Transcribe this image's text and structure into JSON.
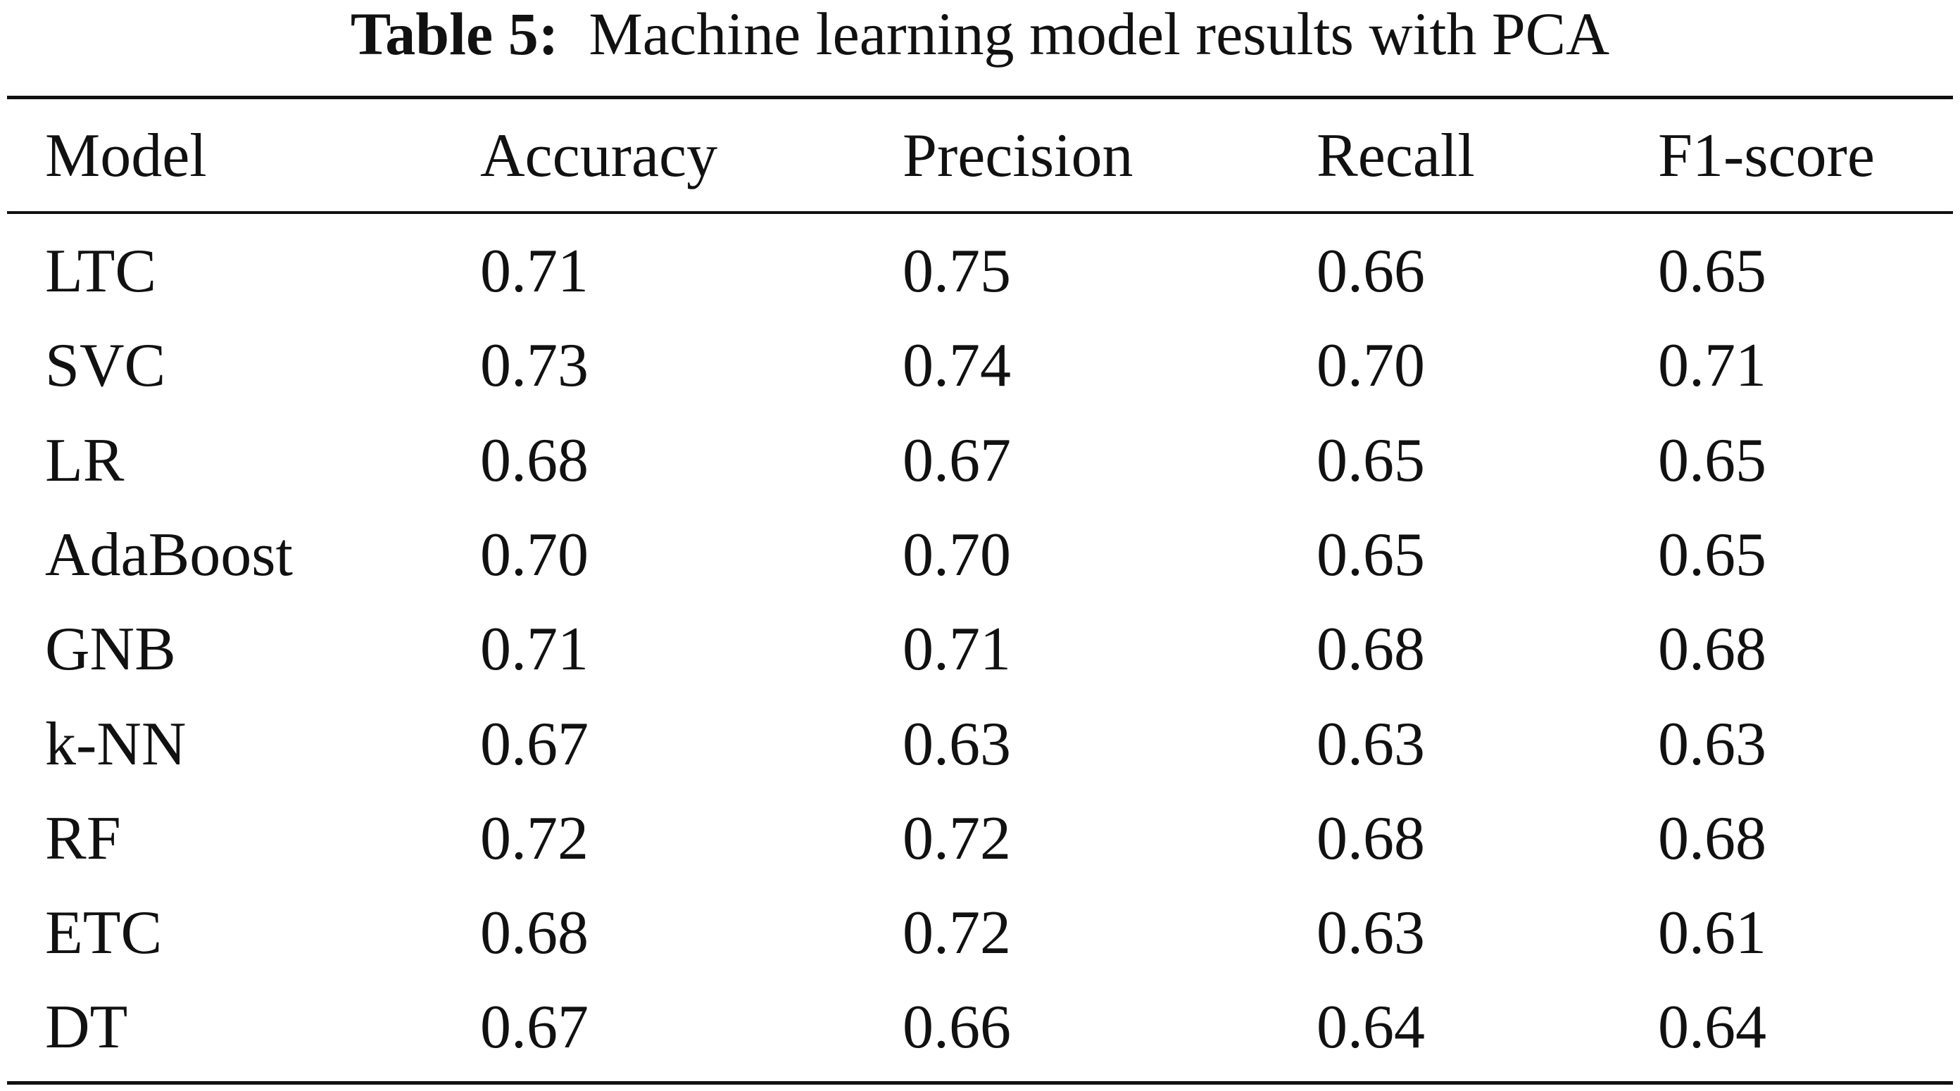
{
  "caption": {
    "label": "Table 5:",
    "text": "Machine learning model results with PCA"
  },
  "table": {
    "columns": [
      "Model",
      "Accuracy",
      "Precision",
      "Recall",
      "F1-score"
    ],
    "rows": [
      [
        "LTC",
        "0.71",
        "0.75",
        "0.66",
        "0.65"
      ],
      [
        "SVC",
        "0.73",
        "0.74",
        "0.70",
        "0.71"
      ],
      [
        "LR",
        "0.68",
        "0.67",
        "0.65",
        "0.65"
      ],
      [
        "AdaBoost",
        "0.70",
        "0.70",
        "0.65",
        "0.65"
      ],
      [
        "GNB",
        "0.71",
        "0.71",
        "0.68",
        "0.68"
      ],
      [
        "k-NN",
        "0.67",
        "0.63",
        "0.63",
        "0.63"
      ],
      [
        "RF",
        "0.72",
        "0.72",
        "0.68",
        "0.68"
      ],
      [
        "ETC",
        "0.68",
        "0.72",
        "0.63",
        "0.61"
      ],
      [
        "DT",
        "0.67",
        "0.66",
        "0.64",
        "0.64"
      ]
    ]
  }
}
